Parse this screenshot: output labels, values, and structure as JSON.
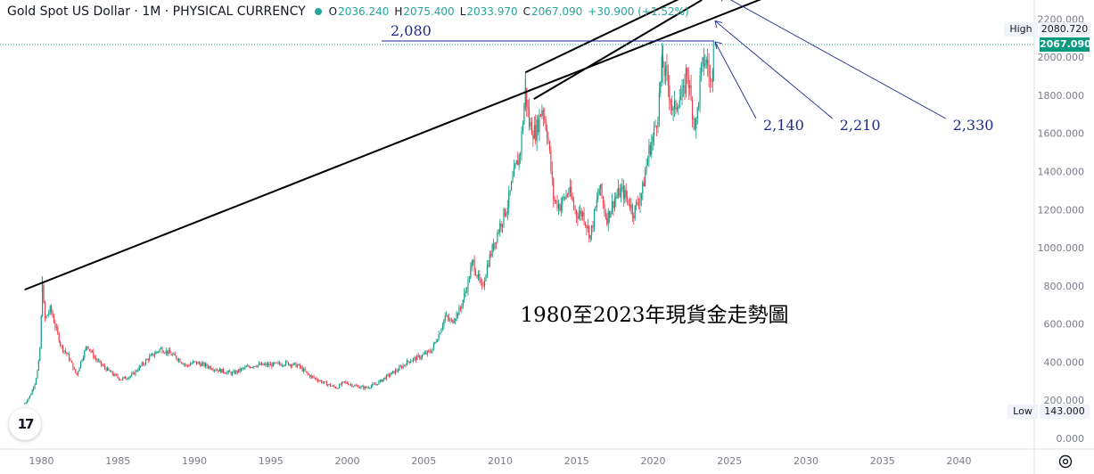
{
  "header": {
    "symbol": "Gold Spot US Dollar · 1M · PHYSICAL CURRENCY",
    "o_label": "O",
    "o": "2036.240",
    "h_label": "H",
    "h": "2075.400",
    "l_label": "L",
    "l": "2033.970",
    "c_label": "C",
    "c": "2067.090",
    "change": "+30.900 (+1.52%)"
  },
  "price_labels": {
    "high_label": "High",
    "high_value": "2080.720",
    "current_value": "2067.090",
    "low_label": "Low",
    "low_value": "143.000"
  },
  "logo_text": "17",
  "colors": {
    "up": "#089981",
    "down": "#f23645",
    "annotation": "#1c2a8c",
    "trendline": "#000000",
    "axis_text": "#787b86"
  },
  "chart_data": {
    "type": "candlestick",
    "title": "1980至2023年現貨金走勢圖",
    "ylim": [
      0,
      2200
    ],
    "y_ticks": [
      "0.000",
      "200.000",
      "400.000",
      "600.000",
      "800.000",
      "1000.000",
      "1200.000",
      "1400.000",
      "1600.000",
      "1800.000",
      "2000.000",
      "2200.000"
    ],
    "x_ticks": [
      "1980",
      "1985",
      "1990",
      "1995",
      "2000",
      "2005",
      "2010",
      "2015",
      "2020",
      "2025",
      "2030",
      "2035",
      "2040"
    ],
    "xlim": [
      1978.9,
      2042.7
    ],
    "close_series": [
      [
        1978.9,
        182
      ],
      [
        1979.3,
        230
      ],
      [
        1979.6,
        300
      ],
      [
        1979.8,
        380
      ],
      [
        1979.95,
        520
      ],
      [
        1980.05,
        850
      ],
      [
        1980.2,
        620
      ],
      [
        1980.6,
        680
      ],
      [
        1980.9,
        590
      ],
      [
        1981.3,
        480
      ],
      [
        1981.7,
        440
      ],
      [
        1982.3,
        330
      ],
      [
        1982.6,
        410
      ],
      [
        1983.0,
        490
      ],
      [
        1983.5,
        420
      ],
      [
        1984.0,
        380
      ],
      [
        1984.6,
        340
      ],
      [
        1985.2,
        310
      ],
      [
        1985.9,
        330
      ],
      [
        1986.5,
        380
      ],
      [
        1987.0,
        420
      ],
      [
        1987.8,
        470
      ],
      [
        1988.3,
        450
      ],
      [
        1988.9,
        420
      ],
      [
        1989.5,
        380
      ],
      [
        1990.0,
        400
      ],
      [
        1990.8,
        380
      ],
      [
        1991.5,
        360
      ],
      [
        1992.5,
        340
      ],
      [
        1993.3,
        370
      ],
      [
        1994.0,
        385
      ],
      [
        1995.0,
        385
      ],
      [
        1996.0,
        395
      ],
      [
        1996.8,
        380
      ],
      [
        1997.5,
        330
      ],
      [
        1998.5,
        290
      ],
      [
        1999.3,
        265
      ],
      [
        1999.8,
        295
      ],
      [
        2000.5,
        275
      ],
      [
        2001.2,
        265
      ],
      [
        2001.9,
        285
      ],
      [
        2002.5,
        320
      ],
      [
        2003.3,
        360
      ],
      [
        2004.0,
        405
      ],
      [
        2004.8,
        430
      ],
      [
        2005.5,
        460
      ],
      [
        2006.0,
        550
      ],
      [
        2006.4,
        640
      ],
      [
        2006.8,
        610
      ],
      [
        2007.4,
        680
      ],
      [
        2007.9,
        820
      ],
      [
        2008.2,
        930
      ],
      [
        2008.8,
        780
      ],
      [
        2009.2,
        920
      ],
      [
        2009.9,
        1100
      ],
      [
        2010.5,
        1230
      ],
      [
        2010.95,
        1400
      ],
      [
        2011.3,
        1500
      ],
      [
        2011.65,
        1820
      ],
      [
        2011.9,
        1650
      ],
      [
        2012.3,
        1600
      ],
      [
        2012.75,
        1740
      ],
      [
        2013.1,
        1600
      ],
      [
        2013.5,
        1250
      ],
      [
        2013.9,
        1220
      ],
      [
        2014.5,
        1300
      ],
      [
        2014.95,
        1180
      ],
      [
        2015.4,
        1180
      ],
      [
        2015.9,
        1060
      ],
      [
        2016.5,
        1320
      ],
      [
        2016.95,
        1150
      ],
      [
        2017.5,
        1260
      ],
      [
        2017.95,
        1300
      ],
      [
        2018.5,
        1230
      ],
      [
        2018.7,
        1180
      ],
      [
        2019.3,
        1300
      ],
      [
        2019.7,
        1500
      ],
      [
        2020.0,
        1580
      ],
      [
        2020.3,
        1700
      ],
      [
        2020.6,
        1970
      ],
      [
        2021.0,
        1850
      ],
      [
        2021.3,
        1700
      ],
      [
        2021.6,
        1780
      ],
      [
        2022.0,
        1800
      ],
      [
        2022.2,
        1950
      ],
      [
        2022.5,
        1750
      ],
      [
        2022.8,
        1630
      ],
      [
        2023.1,
        1900
      ],
      [
        2023.35,
        1990
      ],
      [
        2023.6,
        1950
      ],
      [
        2023.8,
        1820
      ],
      [
        2023.95,
        2067
      ]
    ],
    "annotations": [
      {
        "text": "2,080",
        "price": 2080
      },
      {
        "text": "2,140",
        "price": 2140
      },
      {
        "text": "2,210",
        "price": 2210
      },
      {
        "text": "2,330",
        "price": 2330
      }
    ],
    "trendlines": [
      [
        [
          1978.9,
          780
        ],
        [
          2032.0,
          2460
        ]
      ],
      [
        [
          2011.65,
          1920
        ],
        [
          2026.0,
          2470
        ]
      ],
      [
        [
          2012.2,
          1780
        ],
        [
          2023.2,
          2300
        ]
      ]
    ],
    "horizontal_line_price": 2080
  }
}
